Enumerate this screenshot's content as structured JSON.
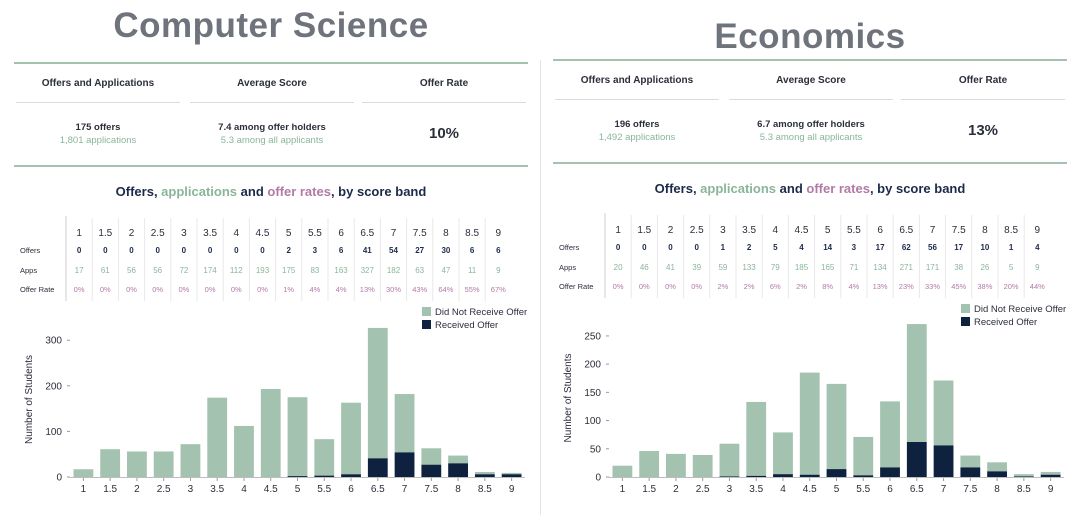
{
  "panels": [
    {
      "title": "Computer Science",
      "summary": {
        "headers": [
          "Offers and Applications",
          "Average Score",
          "Offer Rate"
        ],
        "offers_text": "175 offers",
        "apps_text": "1,801 applications",
        "score_main": "7.4 among offer holders",
        "score_sub": "5.3 among all applicants",
        "rate": "10%"
      },
      "subtitle": {
        "p1": "Offers, ",
        "p2": "applications",
        "p3": " and ",
        "p4": "offer rates",
        "p5": ", by score band"
      },
      "table": {
        "row_labels": [
          "Offers",
          "Apps",
          "Offer Rate"
        ],
        "offer_rate": [
          "0%",
          "0%",
          "0%",
          "0%",
          "0%",
          "0%",
          "0%",
          "0%",
          "1%",
          "4%",
          "4%",
          "13%",
          "30%",
          "43%",
          "64%",
          "55%",
          "67%"
        ]
      },
      "legend": [
        "Did Not Receive Offer",
        "Received Offer"
      ],
      "chart_data": {
        "type": "bar",
        "stacked": true,
        "categories": [
          "1",
          "1.5",
          "2",
          "2.5",
          "3",
          "3.5",
          "4",
          "4.5",
          "5",
          "5.5",
          "6",
          "6.5",
          "7",
          "7.5",
          "8",
          "8.5",
          "9"
        ],
        "series": [
          {
            "name": "Received Offer",
            "values": [
              0,
              0,
              0,
              0,
              0,
              0,
              0,
              0,
              2,
              3,
              6,
              41,
              54,
              27,
              30,
              6,
              6
            ]
          },
          {
            "name": "Did Not Receive Offer",
            "values": [
              17,
              61,
              56,
              56,
              72,
              174,
              112,
              193,
              173,
              80,
              157,
              286,
              128,
              36,
              17,
              5,
              3
            ]
          }
        ],
        "applications": [
          17,
          61,
          56,
          56,
          72,
          174,
          112,
          193,
          175,
          83,
          163,
          327,
          182,
          63,
          47,
          11,
          9
        ],
        "ylabel": "Number of Students",
        "yticks": [
          0,
          100,
          200,
          300
        ],
        "ylim": [
          0,
          340
        ],
        "legend_position": "top-right"
      }
    },
    {
      "title": "Economics",
      "summary": {
        "headers": [
          "Offers and Applications",
          "Average Score",
          "Offer Rate"
        ],
        "offers_text": "196 offers",
        "apps_text": "1,492 applications",
        "score_main": "6.7 among offer holders",
        "score_sub": "5.3 among all applicants",
        "rate": "13%"
      },
      "subtitle": {
        "p1": "Offers, ",
        "p2": "applications",
        "p3": " and ",
        "p4": "offer rates",
        "p5": ", by score band"
      },
      "table": {
        "row_labels": [
          "Offers",
          "Apps",
          "Offer Rate"
        ],
        "offer_rate": [
          "0%",
          "0%",
          "0%",
          "0%",
          "2%",
          "2%",
          "6%",
          "2%",
          "8%",
          "4%",
          "13%",
          "23%",
          "33%",
          "45%",
          "38%",
          "20%",
          "44%"
        ]
      },
      "legend": [
        "Did Not Receive Offer",
        "Received Offer"
      ],
      "chart_data": {
        "type": "bar",
        "stacked": true,
        "categories": [
          "1",
          "1.5",
          "2",
          "2.5",
          "3",
          "3.5",
          "4",
          "4.5",
          "5",
          "5.5",
          "6",
          "6.5",
          "7",
          "7.5",
          "8",
          "8.5",
          "9"
        ],
        "series": [
          {
            "name": "Received Offer",
            "values": [
              0,
              0,
              0,
              0,
              1,
              2,
              5,
              4,
              14,
              3,
              17,
              62,
              56,
              17,
              10,
              1,
              4
            ]
          },
          {
            "name": "Did Not Receive Offer",
            "values": [
              20,
              46,
              41,
              39,
              58,
              131,
              74,
              181,
              151,
              68,
              117,
              209,
              115,
              21,
              16,
              4,
              5
            ]
          }
        ],
        "applications": [
          20,
          46,
          41,
          39,
          59,
          133,
          79,
          185,
          165,
          71,
          134,
          271,
          171,
          38,
          26,
          5,
          9
        ],
        "ylabel": "Number of Students",
        "yticks": [
          0,
          50,
          100,
          150,
          200,
          250
        ],
        "ylim": [
          0,
          280
        ],
        "legend_position": "top-right"
      }
    }
  ],
  "colors": {
    "not_offer": "#a3c2b0",
    "offer": "#0e2240",
    "green_text": "#8ab59a",
    "purple_text": "#b27aa6",
    "title_gray": "#6f747c"
  }
}
